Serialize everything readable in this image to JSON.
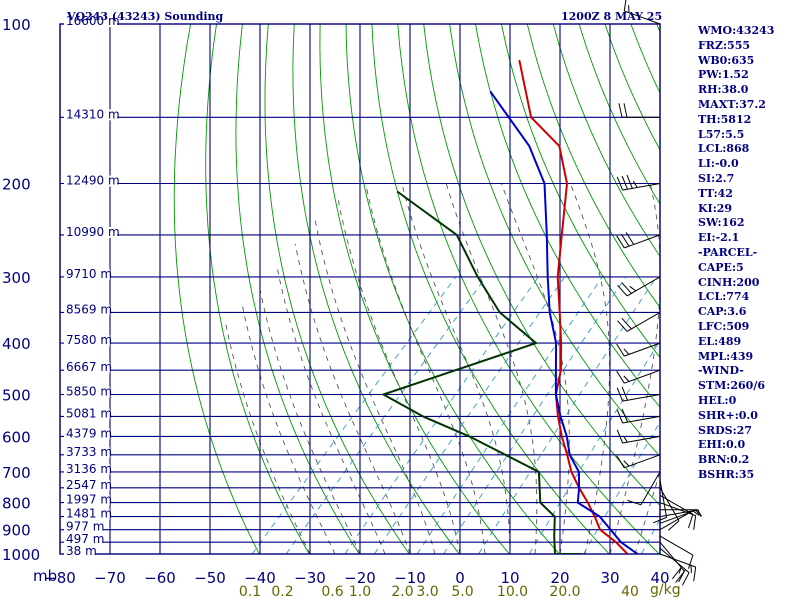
{
  "header": {
    "title": "VQ243 (43243) Sounding",
    "timestamp": "1200Z  8 MAY 25"
  },
  "colors": {
    "frame": "#000080",
    "dry_adiabats": "#009900",
    "moist_adiabats": "#555555",
    "mixing_ratio": "#3399cc",
    "temperature": "#cc0000",
    "parcel": "#0000cc",
    "dewpoint": "#003300",
    "mixing_labels": "#666600"
  },
  "axes": {
    "pressure_unit": "mb",
    "pressure_levels": [
      100,
      200,
      300,
      400,
      500,
      600,
      700,
      800,
      900,
      1000
    ],
    "temperature_ticks": [
      -80,
      -70,
      -60,
      -50,
      -40,
      -30,
      -20,
      -10,
      0,
      10,
      20,
      30,
      40
    ],
    "temperature_tick_labels": [
      "−80",
      "−70",
      "−60",
      "−50",
      "−40",
      "−30",
      "−20",
      "−10",
      "0",
      "10",
      "20",
      "30",
      "40"
    ],
    "height_labels": [
      {
        "p": 100,
        "text": "16600 m"
      },
      {
        "p": 150,
        "text": "14310 m"
      },
      {
        "p": 200,
        "text": "12490 m"
      },
      {
        "p": 250,
        "text": "10990 m"
      },
      {
        "p": 300,
        "text": "9710 m"
      },
      {
        "p": 350,
        "text": "8569 m"
      },
      {
        "p": 400,
        "text": "7580 m"
      },
      {
        "p": 450,
        "text": "6667 m"
      },
      {
        "p": 500,
        "text": "5850 m"
      },
      {
        "p": 550,
        "text": "5081 m"
      },
      {
        "p": 600,
        "text": "4379 m"
      },
      {
        "p": 650,
        "text": "3733 m"
      },
      {
        "p": 700,
        "text": "3136 m"
      },
      {
        "p": 750,
        "text": "2547 m"
      },
      {
        "p": 800,
        "text": "1997 m"
      },
      {
        "p": 850,
        "text": "1481 m"
      },
      {
        "p": 900,
        "text": "977 m"
      },
      {
        "p": 950,
        "text": "497 m"
      },
      {
        "p": 1000,
        "text": "38 m"
      }
    ],
    "mixing_ratio_labels": [
      {
        "w": 0.1,
        "text": "0.1",
        "t": -42
      },
      {
        "w": 0.2,
        "text": "0.2",
        "t": -35.5
      },
      {
        "w": 0.6,
        "text": "0.6",
        "t": -25.5
      },
      {
        "w": 1.0,
        "text": "1.0",
        "t": -20
      },
      {
        "w": 2.0,
        "text": "2.0",
        "t": -11.5
      },
      {
        "w": 3.0,
        "text": "3.0",
        "t": -6.5
      },
      {
        "w": 5.0,
        "text": "5.0",
        "t": 0.5
      },
      {
        "w": 10.0,
        "text": "10.0",
        "t": 10.5
      },
      {
        "w": 20.0,
        "text": "20.0",
        "t": 21
      },
      {
        "w": 40.0,
        "text": "40",
        "t": 34
      }
    ],
    "mixing_ratio_unit": "g/kg"
  },
  "indices": [
    "WMO:43243",
    "FRZ:555",
    "WB0:635",
    "PW:1.52",
    "RH:38.0",
    "MAXT:37.2",
    "TH:5812",
    "L57:5.5",
    "LCL:868",
    "LI:-0.0",
    "SI:2.7",
    "TT:42",
    "KI:29",
    "SW:162",
    "EI:-2.1",
    "-PARCEL-",
    "CAPE:5",
    "CINH:200",
    "LCL:774",
    "CAP:3.6",
    "LFC:509",
    "EL:489",
    "MPL:439",
    "-WIND-",
    "STM:260/6",
    "HEL:0",
    "SHR+:0.0",
    "SRDS:27",
    "EHI:0.0",
    "BRN:0.2",
    "BSHR:35"
  ],
  "chart_data": {
    "type": "line",
    "title": "VQ243 (43243) Sounding",
    "subtitle": "1200Z  8 MAY 25",
    "xlabel": "",
    "ylabel": "mb",
    "xlim": [
      -80,
      40
    ],
    "ylim": [
      1000,
      100
    ],
    "y_scale": "log-pressure",
    "grid": true,
    "series": [
      {
        "key": "temperature",
        "color": "#cc0000",
        "points": [
          [
            33.5,
            1000
          ],
          [
            29,
            950
          ],
          [
            23.5,
            900
          ],
          [
            20,
            850
          ],
          [
            16,
            800
          ],
          [
            11.5,
            750
          ],
          [
            7,
            700
          ],
          [
            3,
            650
          ],
          [
            -1.5,
            600
          ],
          [
            -6,
            550
          ],
          [
            -10.5,
            500
          ],
          [
            -14,
            450
          ],
          [
            -19,
            400
          ],
          [
            -25,
            350
          ],
          [
            -32,
            300
          ],
          [
            -39,
            250
          ],
          [
            -47.5,
            200
          ],
          [
            -56,
            170
          ],
          [
            -67,
            150
          ],
          [
            -80,
            117
          ]
        ]
      },
      {
        "key": "parcel",
        "color": "#0000cc",
        "points": [
          [
            35.5,
            1000
          ],
          [
            30,
            950
          ],
          [
            21,
            850
          ],
          [
            14,
            800
          ],
          [
            11.5,
            750
          ],
          [
            8.5,
            700
          ],
          [
            3.5,
            650
          ],
          [
            -0.5,
            600
          ],
          [
            -5.5,
            550
          ],
          [
            -10.5,
            500
          ],
          [
            -15,
            450
          ],
          [
            -20,
            400
          ],
          [
            -27,
            350
          ],
          [
            -34,
            300
          ],
          [
            -42,
            250
          ],
          [
            -52,
            200
          ],
          [
            -62,
            170
          ],
          [
            -80,
            134
          ]
        ]
      },
      {
        "key": "dewpoint",
        "color": "#003300",
        "points": [
          [
            24.5,
            1000
          ],
          [
            19,
            1000
          ],
          [
            15.5,
            925
          ],
          [
            12,
            850
          ],
          [
            6.5,
            800
          ],
          [
            0.5,
            700
          ],
          [
            -20,
            600
          ],
          [
            -33,
            550
          ],
          [
            -45,
            500
          ],
          [
            -24,
            400
          ],
          [
            -37,
            350
          ],
          [
            -48,
            300
          ],
          [
            -60,
            250
          ],
          [
            -80,
            207
          ]
        ]
      }
    ],
    "wind_barbs": [
      {
        "p": 1000,
        "dir": 110,
        "spd": 15
      },
      {
        "p": 975,
        "dir": 130,
        "spd": 25
      },
      {
        "p": 950,
        "dir": 140,
        "spd": 20
      },
      {
        "p": 925,
        "dir": 120,
        "spd": 10
      },
      {
        "p": 900,
        "dir": 60,
        "spd": 5
      },
      {
        "p": 875,
        "dir": 70,
        "spd": 5
      },
      {
        "p": 850,
        "dir": 80,
        "spd": 5
      },
      {
        "p": 825,
        "dir": 90,
        "spd": 5
      },
      {
        "p": 800,
        "dir": 110,
        "spd": 10
      },
      {
        "p": 775,
        "dir": 120,
        "spd": 10
      },
      {
        "p": 750,
        "dir": 150,
        "spd": 10
      },
      {
        "p": 725,
        "dir": 170,
        "spd": 10
      },
      {
        "p": 700,
        "dir": 210,
        "spd": 10
      },
      {
        "p": 650,
        "dir": 250,
        "spd": 15
      },
      {
        "p": 600,
        "dir": 260,
        "spd": 15
      },
      {
        "p": 550,
        "dir": 260,
        "spd": 20
      },
      {
        "p": 500,
        "dir": 260,
        "spd": 20
      },
      {
        "p": 450,
        "dir": 250,
        "spd": 15
      },
      {
        "p": 400,
        "dir": 250,
        "spd": 15
      },
      {
        "p": 350,
        "dir": 240,
        "spd": 20
      },
      {
        "p": 300,
        "dir": 240,
        "spd": 25
      },
      {
        "p": 250,
        "dir": 250,
        "spd": 30
      },
      {
        "p": 200,
        "dir": 260,
        "spd": 35
      },
      {
        "p": 150,
        "dir": 270,
        "spd": 20
      },
      {
        "p": 100,
        "dir": 290,
        "spd": 15
      }
    ]
  }
}
